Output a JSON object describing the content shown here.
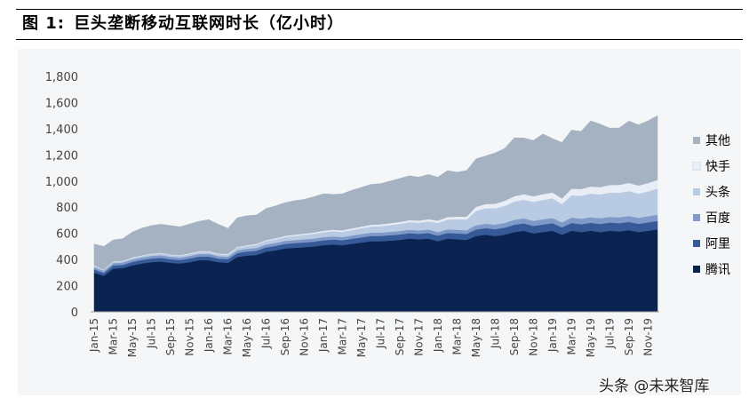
{
  "header": {
    "figure_label": "图 1:",
    "title": "巨头垄断移动互联网时长（亿小时）"
  },
  "watermark": "头条 @未来智库",
  "chart_data": {
    "type": "area",
    "stacked": true,
    "title": "巨头垄断移动互联网时长（亿小时）",
    "xlabel": "",
    "ylabel": "",
    "ylim": [
      0,
      1800
    ],
    "yticks": [
      "0",
      "200",
      "400",
      "600",
      "800",
      "1,000",
      "1,200",
      "1,400",
      "1,600",
      "1,800"
    ],
    "yticks_values": [
      0,
      200,
      400,
      600,
      800,
      1000,
      1200,
      1400,
      1600,
      1800
    ],
    "x_tick_labels": [
      "Jan-15",
      "Mar-15",
      "May-15",
      "Jul-15",
      "Sep-15",
      "Nov-15",
      "Jan-16",
      "Mar-16",
      "May-16",
      "Jul-16",
      "Sep-16",
      "Nov-16",
      "Jan-17",
      "Mar-17",
      "May-17",
      "Jul-17",
      "Sep-17",
      "Nov-17",
      "Jan-18",
      "Mar-18",
      "May-18",
      "Jul-18",
      "Sep-18",
      "Nov-18",
      "Jan-19",
      "Mar-19",
      "May-19",
      "Jul-19",
      "Sep-19",
      "Nov-19"
    ],
    "x": [
      "Jan-15",
      "Feb-15",
      "Mar-15",
      "Apr-15",
      "May-15",
      "Jun-15",
      "Jul-15",
      "Aug-15",
      "Sep-15",
      "Oct-15",
      "Nov-15",
      "Dec-15",
      "Jan-16",
      "Feb-16",
      "Mar-16",
      "Apr-16",
      "May-16",
      "Jun-16",
      "Jul-16",
      "Aug-16",
      "Sep-16",
      "Oct-16",
      "Nov-16",
      "Dec-16",
      "Jan-17",
      "Feb-17",
      "Mar-17",
      "Apr-17",
      "May-17",
      "Jun-17",
      "Jul-17",
      "Aug-17",
      "Sep-17",
      "Oct-17",
      "Nov-17",
      "Dec-17",
      "Jan-18",
      "Feb-18",
      "Mar-18",
      "Apr-18",
      "May-18",
      "Jun-18",
      "Jul-18",
      "Aug-18",
      "Sep-18",
      "Oct-18",
      "Nov-18",
      "Dec-18",
      "Jan-19",
      "Feb-19",
      "Mar-19",
      "Apr-19",
      "May-19",
      "Jun-19",
      "Jul-19",
      "Aug-19",
      "Sep-19",
      "Oct-19",
      "Nov-19",
      "Dec-19"
    ],
    "legend_position": "right",
    "grid": false,
    "series": [
      {
        "name": "腾讯",
        "color": "#0b2350",
        "values": [
          300,
          275,
          330,
          335,
          355,
          370,
          380,
          385,
          375,
          370,
          380,
          395,
          395,
          380,
          375,
          420,
          430,
          435,
          460,
          470,
          485,
          490,
          495,
          500,
          510,
          515,
          510,
          520,
          530,
          540,
          540,
          545,
          550,
          560,
          555,
          560,
          540,
          560,
          555,
          550,
          580,
          590,
          580,
          590,
          610,
          620,
          600,
          610,
          620,
          590,
          620,
          610,
          620,
          610,
          620,
          615,
          625,
          610,
          620,
          630
        ]
      },
      {
        "name": "阿里",
        "color": "#365a97",
        "values": [
          25,
          22,
          25,
          25,
          27,
          27,
          28,
          28,
          27,
          27,
          28,
          28,
          29,
          27,
          28,
          30,
          31,
          32,
          33,
          34,
          35,
          36,
          36,
          37,
          38,
          38,
          38,
          39,
          40,
          40,
          41,
          41,
          42,
          42,
          42,
          43,
          43,
          44,
          45,
          46,
          50,
          50,
          52,
          54,
          56,
          57,
          57,
          58,
          58,
          56,
          60,
          60,
          61,
          62,
          63,
          63,
          63,
          63,
          64,
          65
        ]
      },
      {
        "name": "百度",
        "color": "#7f9ac8",
        "values": [
          18,
          16,
          18,
          18,
          19,
          19,
          20,
          20,
          19,
          19,
          20,
          20,
          20,
          19,
          19,
          21,
          21,
          22,
          22,
          23,
          23,
          23,
          24,
          24,
          24,
          24,
          24,
          25,
          25,
          25,
          25,
          26,
          26,
          26,
          26,
          27,
          27,
          27,
          28,
          28,
          33,
          34,
          35,
          37,
          38,
          39,
          39,
          40,
          40,
          38,
          42,
          42,
          43,
          44,
          44,
          45,
          46,
          46,
          47,
          48
        ]
      },
      {
        "name": "头条",
        "color": "#b8cbe3",
        "values": [
          10,
          8,
          10,
          10,
          12,
          12,
          13,
          14,
          14,
          14,
          15,
          16,
          16,
          15,
          16,
          20,
          22,
          24,
          26,
          28,
          30,
          32,
          34,
          36,
          38,
          40,
          40,
          42,
          45,
          48,
          50,
          52,
          55,
          58,
          60,
          62,
          70,
          75,
          80,
          82,
          110,
          118,
          125,
          130,
          140,
          142,
          145,
          148,
          150,
          140,
          170,
          175,
          180,
          182,
          185,
          188,
          190,
          185,
          190,
          200
        ]
      },
      {
        "name": "快手",
        "color": "#e9eef6",
        "values": [
          3,
          2,
          3,
          3,
          4,
          4,
          4,
          4,
          4,
          4,
          5,
          5,
          5,
          5,
          5,
          6,
          6,
          7,
          7,
          8,
          8,
          9,
          9,
          10,
          10,
          11,
          11,
          12,
          12,
          13,
          13,
          14,
          14,
          15,
          15,
          16,
          18,
          19,
          20,
          21,
          30,
          32,
          35,
          38,
          40,
          42,
          43,
          44,
          45,
          43,
          50,
          52,
          54,
          56,
          58,
          60,
          62,
          62,
          64,
          66
        ]
      },
      {
        "name": "其他",
        "color": "#a5b2c2",
        "values": [
          162,
          177,
          164,
          169,
          193,
          208,
          215,
          219,
          221,
          216,
          224,
          228,
          240,
          224,
          195,
          223,
          225,
          220,
          242,
          247,
          254,
          260,
          262,
          273,
          283,
          270,
          279,
          292,
          300,
          309,
          311,
          322,
          333,
          339,
          332,
          342,
          332,
          355,
          340,
          353,
          367,
          368,
          388,
          401,
          446,
          430,
          426,
          460,
          412,
          428,
          448,
          441,
          502,
          481,
          435,
          435,
          473,
          464,
          475,
          491
        ]
      }
    ]
  }
}
